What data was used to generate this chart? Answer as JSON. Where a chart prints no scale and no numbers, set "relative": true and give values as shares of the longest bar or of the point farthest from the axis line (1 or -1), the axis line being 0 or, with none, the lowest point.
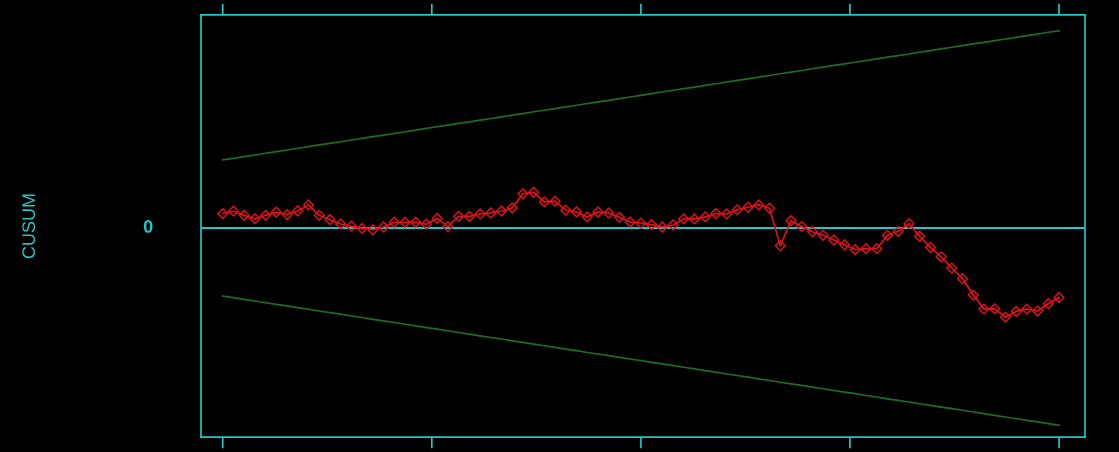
{
  "chart_data": {
    "type": "line",
    "relative": true,
    "annotations": [
      "CUSUM"
    ],
    "marker": "diamond",
    "line_style": "solid",
    "grid": false,
    "legend": false,
    "categories": [
      null,
      null,
      null,
      null,
      null,
      null,
      null,
      null,
      null,
      null,
      null,
      null,
      null,
      null,
      null,
      null,
      null,
      null,
      null,
      null,
      null,
      null,
      null,
      null,
      null,
      null,
      null,
      null,
      null,
      null,
      null,
      null,
      null,
      null,
      null,
      null,
      null,
      null,
      null,
      null,
      null,
      null,
      null,
      null,
      null,
      null,
      null,
      null,
      null,
      null,
      null,
      null,
      null,
      null,
      null,
      null,
      null,
      null,
      null,
      null,
      null,
      null,
      null,
      null,
      null,
      null,
      null,
      null,
      null,
      null,
      null,
      null,
      null,
      null,
      null,
      null,
      null,
      null,
      null
    ],
    "series": [
      {
        "color": "#e8101a",
        "values": [
          0.073,
          0.085,
          0.064,
          0.047,
          0.064,
          0.08,
          0.068,
          0.086,
          0.117,
          0.064,
          0.042,
          0.02,
          0.009,
          -0.002,
          -0.009,
          0.005,
          0.029,
          0.029,
          0.029,
          0.019,
          0.049,
          0.007,
          0.059,
          0.059,
          0.071,
          0.076,
          0.086,
          0.102,
          0.173,
          0.181,
          0.132,
          0.136,
          0.091,
          0.081,
          0.056,
          0.081,
          0.076,
          0.054,
          0.03,
          0.025,
          0.017,
          0.005,
          0.015,
          0.046,
          0.046,
          0.056,
          0.073,
          0.071,
          0.093,
          0.105,
          0.117,
          0.1,
          -0.09,
          0.037,
          0.007,
          -0.019,
          -0.037,
          -0.061,
          -0.085,
          -0.11,
          -0.105,
          -0.105,
          -0.037,
          -0.017,
          0.022,
          -0.042,
          -0.098,
          -0.146,
          -0.203,
          -0.257,
          -0.34,
          -0.411,
          -0.41,
          -0.452,
          -0.423,
          -0.411,
          -0.421,
          -0.384,
          -0.352
        ]
      },
      {
        "color": "#1f6e1f",
        "marker": "none",
        "values": [
          0.345,
          0.353,
          0.362,
          0.37,
          0.379,
          0.387,
          0.395,
          0.404,
          0.412,
          0.421,
          0.429,
          0.437,
          0.446,
          0.454,
          0.463,
          0.471,
          0.479,
          0.488,
          0.496,
          0.505,
          0.513,
          0.521,
          0.53,
          0.538,
          0.547,
          0.555,
          0.563,
          0.572,
          0.58,
          0.589,
          0.597,
          0.605,
          0.614,
          0.622,
          0.631,
          0.639,
          0.647,
          0.656,
          0.664,
          0.672,
          0.681,
          0.689,
          0.698,
          0.706,
          0.714,
          0.723,
          0.731,
          0.74,
          0.748,
          0.756,
          0.765,
          0.773,
          0.782,
          0.79,
          0.798,
          0.807,
          0.815,
          0.824,
          0.832,
          0.84,
          0.849,
          0.857,
          0.866,
          0.874,
          0.882,
          0.891,
          0.899,
          0.908,
          0.916,
          0.924,
          0.933,
          0.941,
          0.95,
          0.958,
          0.966,
          0.975,
          0.983,
          0.992,
          1
        ]
      },
      {
        "color": "#1f6e1f",
        "marker": "none",
        "values": [
          -0.345,
          -0.353,
          -0.362,
          -0.37,
          -0.379,
          -0.387,
          -0.395,
          -0.404,
          -0.412,
          -0.421,
          -0.429,
          -0.437,
          -0.446,
          -0.454,
          -0.463,
          -0.471,
          -0.479,
          -0.488,
          -0.496,
          -0.505,
          -0.513,
          -0.521,
          -0.53,
          -0.538,
          -0.547,
          -0.555,
          -0.563,
          -0.572,
          -0.58,
          -0.589,
          -0.597,
          -0.605,
          -0.614,
          -0.622,
          -0.631,
          -0.639,
          -0.647,
          -0.656,
          -0.664,
          -0.672,
          -0.681,
          -0.689,
          -0.698,
          -0.706,
          -0.714,
          -0.723,
          -0.731,
          -0.74,
          -0.748,
          -0.756,
          -0.765,
          -0.773,
          -0.782,
          -0.79,
          -0.798,
          -0.807,
          -0.815,
          -0.824,
          -0.832,
          -0.84,
          -0.849,
          -0.857,
          -0.866,
          -0.874,
          -0.882,
          -0.891,
          -0.899,
          -0.908,
          -0.916,
          -0.924,
          -0.933,
          -0.941,
          -0.95,
          -0.958,
          -0.966,
          -0.975,
          -0.983,
          -0.992,
          -1
        ]
      }
    ],
    "ref_lines": [
      {
        "axis": "y",
        "value": 0,
        "label": "0",
        "color": "#20c8c8"
      }
    ]
  }
}
